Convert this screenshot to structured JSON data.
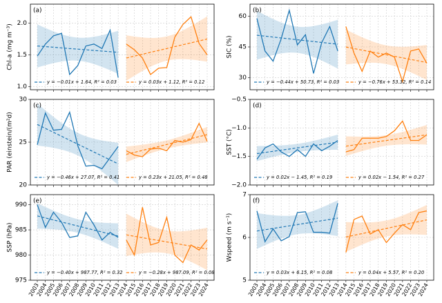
{
  "chart_data": [
    {
      "type": "line",
      "panel_label": "(a)",
      "ylabel": "Chl-a (mg m⁻³)",
      "categories": [
        "2003",
        "2004",
        "2005",
        "2006",
        "2007",
        "2008",
        "2009",
        "2010",
        "2011",
        "2012",
        "2013",
        "2014",
        "2015",
        "2016",
        "2017",
        "2018",
        "2019",
        "2020",
        "2021",
        "2022",
        "2023",
        "2024"
      ],
      "ylim": [
        0.95,
        2.3
      ],
      "yticks": [
        {
          "value": 1.0,
          "label": "1.0"
        },
        {
          "value": 1.5,
          "label": "1.5"
        },
        {
          "value": 2.0,
          "label": "2.0"
        }
      ],
      "grid": true,
      "series": [
        {
          "name": "y = −0.01x + 1.64,  R² = 0.03",
          "color": "#1f77b4",
          "slope": -0.01,
          "intercept": 1.64,
          "values": [
            1.48,
            1.67,
            1.8,
            1.84,
            1.19,
            1.33,
            1.64,
            1.67,
            1.6,
            1.89,
            1.14,
            null,
            null,
            null,
            null,
            null,
            null,
            null,
            null,
            null,
            null,
            null
          ]
        },
        {
          "name": "y = 0.03x + 1.12,  R² = 0.12",
          "color": "#ff7f0e",
          "slope": 0.03,
          "intercept": 1.12,
          "values": [
            null,
            null,
            null,
            null,
            null,
            null,
            null,
            null,
            null,
            null,
            null,
            1.67,
            1.58,
            1.45,
            1.19,
            1.29,
            1.3,
            1.78,
            1.98,
            2.1,
            1.68,
            1.5
          ]
        }
      ]
    },
    {
      "type": "line",
      "panel_label": "(b)",
      "ylabel": "SIC (%)",
      "categories": [
        "2003",
        "2004",
        "2005",
        "2006",
        "2007",
        "2008",
        "2009",
        "2010",
        "2011",
        "2012",
        "2013",
        "2014",
        "2015",
        "2016",
        "2017",
        "2018",
        "2019",
        "2020",
        "2021",
        "2022",
        "2023",
        "2024"
      ],
      "ylim": [
        24,
        66
      ],
      "yticks": [
        30,
        45,
        60
      ],
      "grid": true,
      "series": [
        {
          "name": "y = −0.44x + 50.73,  R² = 0.03",
          "color": "#1f77b4",
          "slope": -0.44,
          "intercept": 50.73,
          "values": [
            59,
            43,
            38,
            49,
            63,
            46,
            51,
            32,
            47,
            55,
            43,
            null,
            null,
            null,
            null,
            null,
            null,
            null,
            null,
            null,
            null,
            null
          ]
        },
        {
          "name": "y = −0.76x + 53.32,  R² = 0.14",
          "color": "#ff7f0e",
          "slope": -0.76,
          "intercept": 53.32,
          "values": [
            null,
            null,
            null,
            null,
            null,
            null,
            null,
            null,
            null,
            null,
            null,
            55,
            42,
            33,
            43,
            40,
            42,
            40,
            28,
            43,
            44,
            37
          ]
        }
      ]
    },
    {
      "type": "line",
      "panel_label": "(c)",
      "ylabel": "PAR (einstein/(m²d)",
      "categories": [
        "2003",
        "2004",
        "2005",
        "2006",
        "2007",
        "2008",
        "2009",
        "2010",
        "2011",
        "2012",
        "2013",
        "2014",
        "2015",
        "2016",
        "2017",
        "2018",
        "2019",
        "2020",
        "2021",
        "2022",
        "2023",
        "2024"
      ],
      "ylim": [
        20,
        30
      ],
      "yticks": [
        20,
        25,
        30
      ],
      "grid": true,
      "series": [
        {
          "name": "y = −0.46x + 27.07,  R² = 0.41",
          "color": "#1f77b4",
          "slope": -0.46,
          "intercept": 27.07,
          "values": [
            24.7,
            28.4,
            26.4,
            26.5,
            28.5,
            24.6,
            22.2,
            22.3,
            21.9,
            23.2,
            24.5,
            null,
            null,
            null,
            null,
            null,
            null,
            null,
            null,
            null,
            null,
            null
          ]
        },
        {
          "name": "y = 0.23x + 21.05,  R² = 0.48",
          "color": "#ff7f0e",
          "slope": 0.23,
          "intercept": 21.05,
          "values": [
            null,
            null,
            null,
            null,
            null,
            null,
            null,
            null,
            null,
            null,
            null,
            24.0,
            23.5,
            23.3,
            24.2,
            24.3,
            24.0,
            25.2,
            25.0,
            25.3,
            27.2,
            25.1
          ]
        }
      ]
    },
    {
      "type": "line",
      "panel_label": "(d)",
      "ylabel": "SST (°C)",
      "categories": [
        "2003",
        "2004",
        "2005",
        "2006",
        "2007",
        "2008",
        "2009",
        "2010",
        "2011",
        "2012",
        "2013",
        "2014",
        "2015",
        "2016",
        "2017",
        "2018",
        "2019",
        "2020",
        "2021",
        "2022",
        "2023",
        "2024"
      ],
      "ylim": [
        -2.0,
        -0.5
      ],
      "yticks": [
        {
          "value": -2.0,
          "label": "−2.0"
        },
        {
          "value": -1.5,
          "label": "−1.5"
        },
        {
          "value": -1.0,
          "label": "−1.0"
        },
        {
          "value": -0.5,
          "label": "−0.5"
        }
      ],
      "grid": true,
      "series": [
        {
          "name": "y = 0.02x − 1.45,  R² = 0.19",
          "color": "#1f77b4",
          "slope": 0.02,
          "intercept": -1.45,
          "values": [
            -1.55,
            -1.35,
            -1.28,
            -1.42,
            -1.5,
            -1.38,
            -1.5,
            -1.28,
            -1.4,
            -1.32,
            -1.22,
            null,
            null,
            null,
            null,
            null,
            null,
            null,
            null,
            null,
            null,
            null
          ]
        },
        {
          "name": "y = 0.02x − 1.54,  R² = 0.27",
          "color": "#ff7f0e",
          "slope": 0.02,
          "intercept": -1.54,
          "values": [
            null,
            null,
            null,
            null,
            null,
            null,
            null,
            null,
            null,
            null,
            null,
            -1.42,
            -1.38,
            -1.18,
            -1.18,
            -1.18,
            -1.15,
            -1.05,
            -0.88,
            -1.22,
            -1.22,
            -1.12
          ]
        }
      ]
    },
    {
      "type": "line",
      "panel_label": "(e)",
      "ylabel": "SSP (hPa)",
      "categories": [
        "2003",
        "2004",
        "2005",
        "2006",
        "2007",
        "2008",
        "2009",
        "2010",
        "2011",
        "2012",
        "2013",
        "2014",
        "2015",
        "2016",
        "2017",
        "2018",
        "2019",
        "2020",
        "2021",
        "2022",
        "2023",
        "2024"
      ],
      "ylim": [
        975,
        992
      ],
      "yticks": [
        975,
        980,
        985,
        990
      ],
      "grid": true,
      "series": [
        {
          "name": "y = −0.40x + 987.77,  R² = 0.32",
          "color": "#1f77b4",
          "slope": -0.4,
          "intercept": 987.77,
          "values": [
            990,
            985.5,
            988.5,
            986.5,
            983.5,
            983.8,
            988.5,
            986,
            983,
            984.5,
            983.5,
            null,
            null,
            null,
            null,
            null,
            null,
            null,
            null,
            null,
            null,
            null
          ]
        },
        {
          "name": "y = −0.28x + 987.09,  R² = 0.08",
          "color": "#ff7f0e",
          "slope": -0.28,
          "intercept": 987.09,
          "values": [
            null,
            null,
            null,
            null,
            null,
            null,
            null,
            null,
            null,
            null,
            null,
            983,
            980,
            989.5,
            982,
            982.5,
            987.5,
            980,
            978.5,
            982,
            981,
            983
          ]
        }
      ]
    },
    {
      "type": "line",
      "panel_label": "(f)",
      "ylabel": "Wspeed (m s⁻¹)",
      "categories": [
        "2003",
        "2004",
        "2005",
        "2006",
        "2007",
        "2008",
        "2009",
        "2010",
        "2011",
        "2012",
        "2013",
        "2014",
        "2015",
        "2016",
        "2017",
        "2018",
        "2019",
        "2020",
        "2021",
        "2022",
        "2023",
        "2024"
      ],
      "ylim": [
        5,
        7
      ],
      "yticks": [
        5,
        6,
        7
      ],
      "grid": true,
      "series": [
        {
          "name": "y = 0.03x + 6.15,  R² = 0.08",
          "color": "#1f77b4",
          "slope": 0.03,
          "intercept": 6.15,
          "values": [
            6.62,
            5.9,
            6.2,
            5.92,
            6.02,
            6.58,
            6.6,
            6.12,
            6.12,
            6.1,
            6.8,
            null,
            null,
            null,
            null,
            null,
            null,
            null,
            null,
            null,
            null,
            null
          ]
        },
        {
          "name": "y = 0.04x + 5.57,  R² = 0.20",
          "color": "#ff7f0e",
          "slope": 0.04,
          "intercept": 5.57,
          "values": [
            null,
            null,
            null,
            null,
            null,
            null,
            null,
            null,
            null,
            null,
            null,
            5.65,
            6.42,
            6.5,
            6.08,
            6.18,
            5.88,
            6.1,
            6.3,
            6.18,
            6.58,
            6.62
          ]
        }
      ]
    }
  ]
}
